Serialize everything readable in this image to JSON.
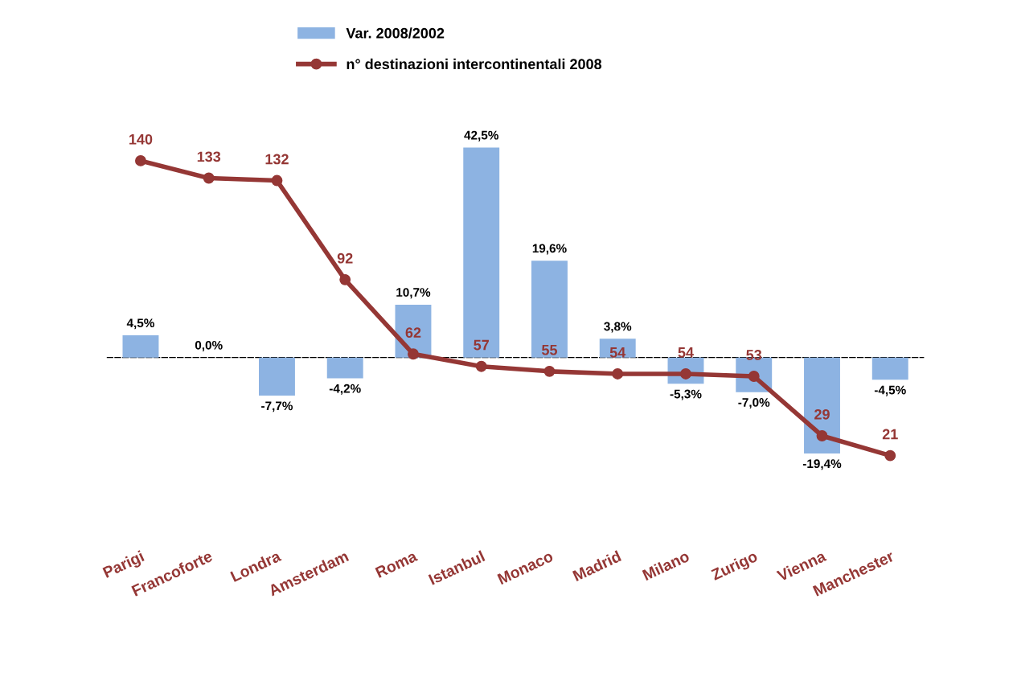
{
  "chart_data": {
    "type": "bar",
    "categories": [
      "Parigi",
      "Francoforte",
      "Londra",
      "Amsterdam",
      "Roma",
      "Istanbul",
      "Monaco",
      "Madrid",
      "Milano",
      "Zurigo",
      "Vienna",
      "Manchester"
    ],
    "series": [
      {
        "name": "Var. 2008/2002",
        "color": "#8db3e2",
        "values": [
          4.5,
          0.0,
          -7.7,
          -4.2,
          10.7,
          42.5,
          19.6,
          3.8,
          -5.3,
          -7.0,
          -19.4,
          -4.5
        ],
        "value_labels": [
          "4,5%",
          "0,0%",
          "-7,7%",
          "-4,2%",
          "10,7%",
          "42,5%",
          "19,6%",
          "3,8%",
          "-5,3%",
          "-7,0%",
          "-19,4%",
          "-4,5%"
        ]
      },
      {
        "name": "n° destinazioni intercontinentali 2008",
        "type": "line",
        "axis": "y2",
        "color": "#953735",
        "values": [
          140,
          133,
          132,
          92,
          62,
          57,
          55,
          54,
          54,
          53,
          29,
          21
        ],
        "value_labels": [
          "140",
          "133",
          "132",
          "92",
          "62",
          "57",
          "55",
          "54",
          "54",
          "53",
          "29",
          "21"
        ]
      }
    ],
    "ref_lines": [
      {
        "axis": "y",
        "value": 0,
        "color": "#000000",
        "line_style": "dashed"
      }
    ],
    "tick_labels": "x",
    "legend": "top",
    "grid": false,
    "marker": "circle",
    "line_style": "solid"
  }
}
